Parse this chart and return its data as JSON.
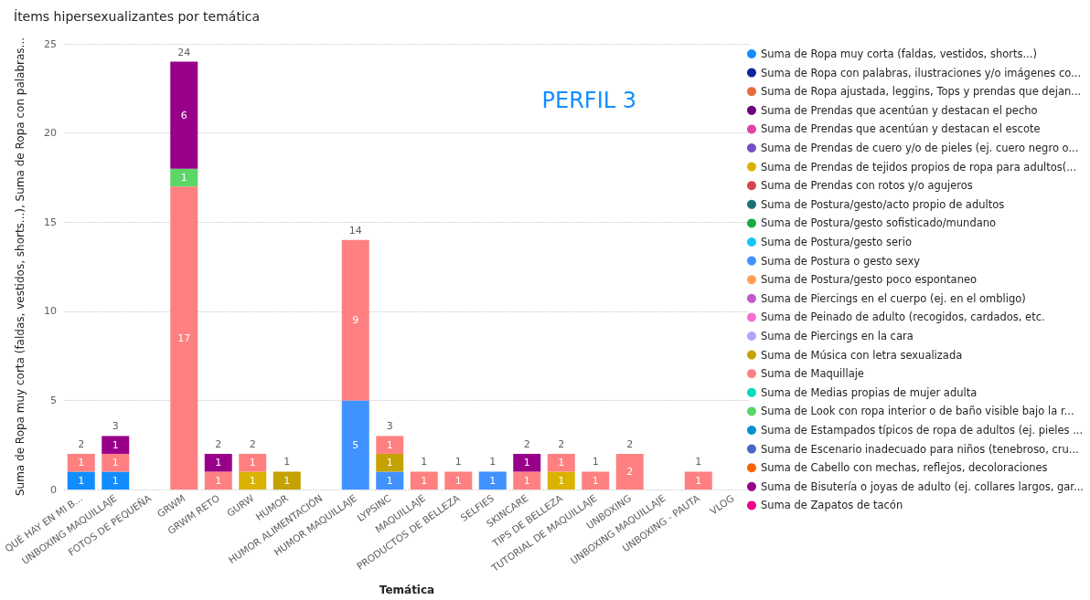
{
  "chart_data": {
    "type": "bar",
    "title": "Ítems hipersexualizantes por temática",
    "xlabel": "Temática",
    "ylabel": "Suma de Ropa muy corta (faldas, vestidos, shorts...), Suma de Ropa con palabras...",
    "annotations": [
      "PERFIL 3"
    ],
    "categories": [
      "QUÉ HAY EN MI B...",
      "UNBOXING MAQUILLAJE",
      "FOTOS DE PEQUEÑA",
      "GRWM",
      "GRWM RETO",
      "GURW",
      "HUMOR",
      "HUMOR ALIMENTACIÓN",
      "HUMOR MAQUILLAJE",
      "LYPSINC",
      "MAQUILLAJE",
      "PRODUCTOS DE BELLEZA",
      "SELFIES",
      "SKINCARE",
      "TIPS DE BELLEZA",
      "TUTORIAL DE MAQUILLAJE",
      "UNBOXING",
      "UNBOXING MAQUILLAJE",
      "UNBOXING - PAUTA",
      "VLOG"
    ],
    "stacked": true,
    "data_labels": true,
    "grid": "y",
    "legend": "right",
    "ylim": [
      0,
      25
    ],
    "yticks": [
      0,
      5,
      10,
      15,
      20,
      25
    ],
    "totals": [
      "2",
      "3",
      null,
      "24",
      "2",
      "2",
      "1",
      null,
      "14",
      "3",
      "1",
      "1",
      "1",
      "2",
      "2",
      "1",
      "2",
      null,
      "1",
      null
    ],
    "series": [
      {
        "name": "Suma de Ropa muy corta (faldas, vestidos, shorts...)",
        "color": "#118dff",
        "values": [
          1,
          1,
          null,
          null,
          null,
          null,
          null,
          null,
          null,
          null,
          null,
          null,
          null,
          null,
          null,
          null,
          null,
          null,
          null,
          null
        ]
      },
      {
        "name": "Suma de Ropa con palabras, ilustraciones y/o imágenes co...",
        "color": "#12239e",
        "values": [
          null,
          null,
          null,
          null,
          null,
          null,
          null,
          null,
          null,
          null,
          null,
          null,
          null,
          null,
          null,
          null,
          null,
          null,
          null,
          null
        ]
      },
      {
        "name": "Suma de Ropa ajustada, leggins, Tops y prendas que dejan...",
        "color": "#e66c37",
        "values": [
          null,
          null,
          null,
          null,
          null,
          null,
          null,
          null,
          null,
          null,
          null,
          null,
          null,
          null,
          null,
          null,
          null,
          null,
          null,
          null
        ]
      },
      {
        "name": "Suma de Prendas que acentúan y destacan el pecho",
        "color": "#6b007b",
        "values": [
          null,
          null,
          null,
          null,
          null,
          null,
          null,
          null,
          null,
          null,
          null,
          null,
          null,
          null,
          null,
          null,
          null,
          null,
          null,
          null
        ]
      },
      {
        "name": "Suma de Prendas que acentúan y destacan el escote",
        "color": "#e044a7",
        "values": [
          null,
          null,
          null,
          null,
          null,
          null,
          null,
          null,
          null,
          null,
          null,
          null,
          null,
          null,
          null,
          null,
          null,
          null,
          null,
          null
        ]
      },
      {
        "name": "Suma de Prendas de cuero y/o de pieles (ej. cuero negro o...",
        "color": "#744ec2",
        "values": [
          null,
          null,
          null,
          null,
          null,
          null,
          null,
          null,
          null,
          null,
          null,
          null,
          null,
          null,
          null,
          null,
          null,
          null,
          null,
          null
        ]
      },
      {
        "name": "Suma de Prendas de tejidos propios de ropa para adultos(...",
        "color": "#d9b300",
        "values": [
          null,
          null,
          null,
          null,
          null,
          1,
          null,
          null,
          null,
          null,
          null,
          null,
          null,
          null,
          1,
          null,
          null,
          null,
          null,
          null
        ]
      },
      {
        "name": "Suma de Prendas con rotos y/o agujeros",
        "color": "#d64550",
        "values": [
          null,
          null,
          null,
          null,
          null,
          null,
          null,
          null,
          null,
          null,
          null,
          null,
          null,
          null,
          null,
          null,
          null,
          null,
          null,
          null
        ]
      },
      {
        "name": "Suma de Postura/gesto/acto propio de adultos",
        "color": "#197278",
        "values": [
          null,
          null,
          null,
          null,
          null,
          null,
          null,
          null,
          null,
          null,
          null,
          null,
          null,
          null,
          null,
          null,
          null,
          null,
          null,
          null
        ]
      },
      {
        "name": "Suma de Postura/gesto sofisticado/mundano",
        "color": "#1aab40",
        "values": [
          null,
          null,
          null,
          null,
          null,
          null,
          null,
          null,
          null,
          null,
          null,
          null,
          null,
          null,
          null,
          null,
          null,
          null,
          null,
          null
        ]
      },
      {
        "name": "Suma de Postura/gesto serio",
        "color": "#15c6f4",
        "values": [
          null,
          null,
          null,
          null,
          null,
          null,
          null,
          null,
          null,
          null,
          null,
          null,
          null,
          null,
          null,
          null,
          null,
          null,
          null,
          null
        ]
      },
      {
        "name": "Suma de Postura o gesto sexy",
        "color": "#4092ff",
        "values": [
          null,
          null,
          null,
          null,
          null,
          null,
          null,
          null,
          5,
          1,
          null,
          null,
          1,
          null,
          null,
          null,
          null,
          null,
          null,
          null
        ]
      },
      {
        "name": "Suma de Postura/gesto poco espontaneo",
        "color": "#ffa058",
        "values": [
          null,
          null,
          null,
          null,
          null,
          null,
          null,
          null,
          null,
          null,
          null,
          null,
          null,
          null,
          null,
          null,
          null,
          null,
          null,
          null
        ]
      },
      {
        "name": "Suma de Piercings en el cuerpo (ej. en el ombligo)",
        "color": "#be5dc9",
        "values": [
          null,
          null,
          null,
          null,
          null,
          null,
          null,
          null,
          null,
          null,
          null,
          null,
          null,
          null,
          null,
          null,
          null,
          null,
          null,
          null
        ]
      },
      {
        "name": "Suma de Peinado de adulto (recogidos, cardados, etc.",
        "color": "#f472d0",
        "values": [
          null,
          null,
          null,
          null,
          null,
          null,
          null,
          null,
          null,
          null,
          null,
          null,
          null,
          null,
          null,
          null,
          null,
          null,
          null,
          null
        ]
      },
      {
        "name": "Suma de Piercings en la cara",
        "color": "#b5a1ff",
        "values": [
          null,
          null,
          null,
          null,
          null,
          null,
          null,
          null,
          null,
          null,
          null,
          null,
          null,
          null,
          null,
          null,
          null,
          null,
          null,
          null
        ]
      },
      {
        "name": "Suma de Música con letra sexualizada",
        "color": "#c4a200",
        "values": [
          null,
          null,
          null,
          null,
          null,
          null,
          1,
          null,
          null,
          1,
          null,
          null,
          null,
          null,
          null,
          null,
          null,
          null,
          null,
          null
        ]
      },
      {
        "name": "Suma de Maquillaje",
        "color": "#ff8080",
        "values": [
          1,
          1,
          null,
          17,
          1,
          1,
          null,
          null,
          9,
          1,
          1,
          1,
          null,
          1,
          1,
          1,
          2,
          null,
          1,
          null
        ]
      },
      {
        "name": "Suma de Medias propias de mujer adulta",
        "color": "#00dbbc",
        "values": [
          null,
          null,
          null,
          null,
          null,
          null,
          null,
          null,
          null,
          null,
          null,
          null,
          null,
          null,
          null,
          null,
          null,
          null,
          null,
          null
        ]
      },
      {
        "name": "Suma de Look con ropa interior o de baño visible bajo la r...",
        "color": "#5bd667",
        "values": [
          null,
          null,
          null,
          1,
          null,
          null,
          null,
          null,
          null,
          null,
          null,
          null,
          null,
          null,
          null,
          null,
          null,
          null,
          null,
          null
        ]
      },
      {
        "name": "Suma de Estampados típicos de ropa de adultos (ej. pieles ...",
        "color": "#0091d5",
        "values": [
          null,
          null,
          null,
          null,
          null,
          null,
          null,
          null,
          null,
          null,
          null,
          null,
          null,
          null,
          null,
          null,
          null,
          null,
          null,
          null
        ]
      },
      {
        "name": "Suma de Escenario inadecuado para niños (tenebroso, cru...",
        "color": "#4668c5",
        "values": [
          null,
          null,
          null,
          null,
          null,
          null,
          null,
          null,
          null,
          null,
          null,
          null,
          null,
          null,
          null,
          null,
          null,
          null,
          null,
          null
        ]
      },
      {
        "name": "Suma de Cabello con mechas, reflejos, decoloraciones",
        "color": "#ff6300",
        "values": [
          null,
          null,
          null,
          null,
          null,
          null,
          null,
          null,
          null,
          null,
          null,
          null,
          null,
          null,
          null,
          null,
          null,
          null,
          null,
          null
        ]
      },
      {
        "name": "Suma de Bisutería o joyas de adulto (ej. collares largos, gar...",
        "color": "#99008a",
        "values": [
          null,
          1,
          null,
          6,
          1,
          null,
          null,
          null,
          null,
          null,
          null,
          null,
          null,
          1,
          null,
          null,
          null,
          null,
          null,
          null
        ]
      },
      {
        "name": "Suma de Zapatos de tacón",
        "color": "#ec008c",
        "values": [
          null,
          null,
          null,
          null,
          null,
          null,
          null,
          null,
          null,
          null,
          null,
          null,
          null,
          null,
          null,
          null,
          null,
          null,
          null,
          null
        ]
      }
    ]
  }
}
